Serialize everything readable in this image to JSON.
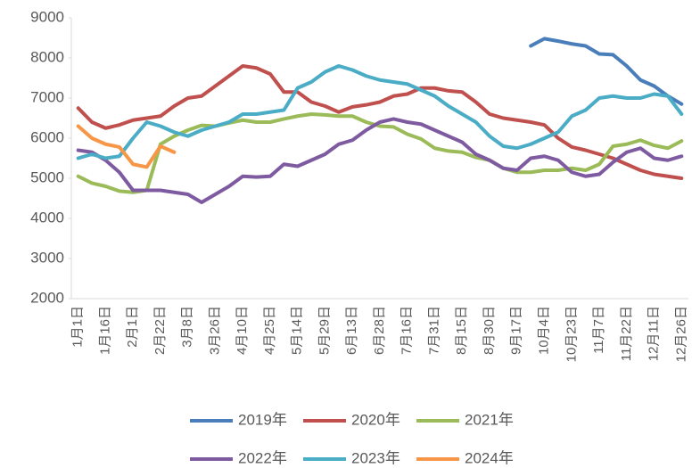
{
  "chart_data": {
    "type": "line",
    "categories": [
      "1月1日",
      null,
      "1月16日",
      null,
      "2月1日",
      null,
      "2月22日",
      null,
      "3月8日",
      null,
      "3月26日",
      null,
      "4月10日",
      null,
      "4月25日",
      null,
      "5月14日",
      null,
      "5月29日",
      null,
      "6月13日",
      null,
      "6月28日",
      null,
      "7月16日",
      null,
      "7月31日",
      null,
      "8月15日",
      null,
      "8月30日",
      null,
      "9月17日",
      null,
      "10月4日",
      null,
      "10月23日",
      null,
      "11月7日",
      null,
      "11月22日",
      null,
      "12月11日",
      null,
      "12月26日"
    ],
    "ylim": [
      2000,
      9000
    ],
    "yticks": [
      2000,
      3000,
      4000,
      5000,
      6000,
      7000,
      8000,
      9000
    ],
    "grid": false,
    "legend": "bottom",
    "series": [
      {
        "name": "2019年",
        "color": "#4a7ebb",
        "values": [
          null,
          null,
          null,
          null,
          null,
          null,
          null,
          null,
          null,
          null,
          null,
          null,
          null,
          null,
          null,
          null,
          null,
          null,
          null,
          null,
          null,
          null,
          null,
          null,
          null,
          null,
          null,
          null,
          null,
          null,
          null,
          null,
          null,
          8300,
          8480,
          8420,
          8350,
          8300,
          8100,
          8080,
          7800,
          7450,
          7300,
          7050,
          6850
        ]
      },
      {
        "name": "2020年",
        "color": "#c0504d",
        "values": [
          6750,
          6400,
          6250,
          6330,
          6450,
          6500,
          6550,
          6800,
          7000,
          7050,
          7300,
          7550,
          7800,
          7750,
          7600,
          7150,
          7150,
          6900,
          6800,
          6650,
          6780,
          6830,
          6900,
          7050,
          7100,
          7250,
          7250,
          7180,
          7150,
          6900,
          6600,
          6500,
          6450,
          6400,
          6330,
          6000,
          5780,
          5700,
          5600,
          5500,
          5350,
          5200,
          5100,
          5050,
          5000
        ]
      },
      {
        "name": "2021年",
        "color": "#9bbb59",
        "values": [
          5050,
          4880,
          4800,
          4680,
          4650,
          4700,
          5850,
          6050,
          6200,
          6320,
          6300,
          6380,
          6450,
          6400,
          6400,
          6480,
          6550,
          6600,
          6580,
          6550,
          6550,
          6400,
          6300,
          6280,
          6100,
          5980,
          5750,
          5680,
          5650,
          5520,
          5450,
          5250,
          5150,
          5150,
          5200,
          5200,
          5250,
          5200,
          5350,
          5800,
          5850,
          5950,
          5820,
          5750,
          5930
        ]
      },
      {
        "name": "2022年",
        "color": "#7e5ba1",
        "values": [
          5700,
          5650,
          5450,
          5150,
          4700,
          4700,
          4700,
          4650,
          4600,
          4400,
          4600,
          4800,
          5050,
          5030,
          5050,
          5350,
          5300,
          5450,
          5600,
          5850,
          5950,
          6200,
          6400,
          6480,
          6400,
          6350,
          6200,
          6050,
          5900,
          5600,
          5450,
          5250,
          5200,
          5500,
          5550,
          5450,
          5150,
          5050,
          5100,
          5400,
          5650,
          5750,
          5500,
          5450,
          5550
        ]
      },
      {
        "name": "2023年",
        "color": "#4bacc6",
        "values": [
          5500,
          5600,
          5500,
          5550,
          6000,
          6400,
          6300,
          6150,
          6050,
          6200,
          6300,
          6400,
          6600,
          6600,
          6650,
          6700,
          7250,
          7400,
          7650,
          7800,
          7700,
          7550,
          7450,
          7400,
          7350,
          7200,
          7050,
          6800,
          6600,
          6400,
          6050,
          5800,
          5750,
          5850,
          6000,
          6150,
          6550,
          6700,
          7000,
          7050,
          7000,
          7000,
          7100,
          7050,
          6600
        ]
      },
      {
        "name": "2024年",
        "color": "#f79646",
        "values": [
          6300,
          6000,
          5850,
          5780,
          5350,
          5280,
          5800,
          5650,
          null,
          null,
          null,
          null,
          null,
          null,
          null,
          null,
          null,
          null,
          null,
          null,
          null,
          null,
          null,
          null,
          null,
          null,
          null,
          null,
          null,
          null,
          null,
          null,
          null,
          null,
          null,
          null,
          null,
          null,
          null,
          null,
          null,
          null,
          null,
          null,
          null
        ]
      }
    ]
  }
}
